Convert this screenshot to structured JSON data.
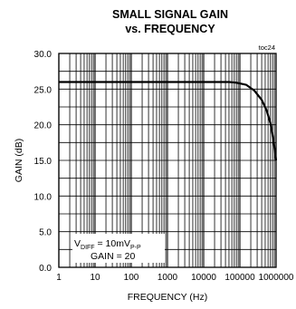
{
  "chart_data": {
    "type": "line",
    "title": "SMALL SIGNAL GAIN",
    "subtitle": "vs. FREQUENCY",
    "tag": "toc24",
    "xlabel": "FREQUENCY (Hz)",
    "ylabel": "GAIN (dB)",
    "x_scale": "log",
    "xlim": [
      1,
      1000000
    ],
    "ylim": [
      0,
      30
    ],
    "grid": true,
    "x_ticks": [
      "1",
      "10",
      "100",
      "1000",
      "10000",
      "100000",
      "1000000"
    ],
    "y_ticks": [
      "0.0",
      "5.0",
      "10.0",
      "15.0",
      "20.0",
      "25.0",
      "30.0"
    ],
    "annotation": {
      "line1_main": "V",
      "line1_sub": "DIFF",
      "line1_rest": " = 10mV",
      "line1_sub2": "P-P",
      "line2": "GAIN = 20"
    },
    "series": [
      {
        "x": [
          1,
          10,
          100,
          1000,
          10000,
          50000,
          80000,
          150000,
          250000,
          400000,
          550000,
          700000,
          850000,
          1000000
        ],
        "y": [
          26.0,
          26.0,
          26.0,
          26.0,
          26.0,
          26.0,
          25.9,
          25.6,
          24.8,
          23.5,
          22.0,
          20.2,
          17.8,
          15.0
        ]
      }
    ]
  }
}
